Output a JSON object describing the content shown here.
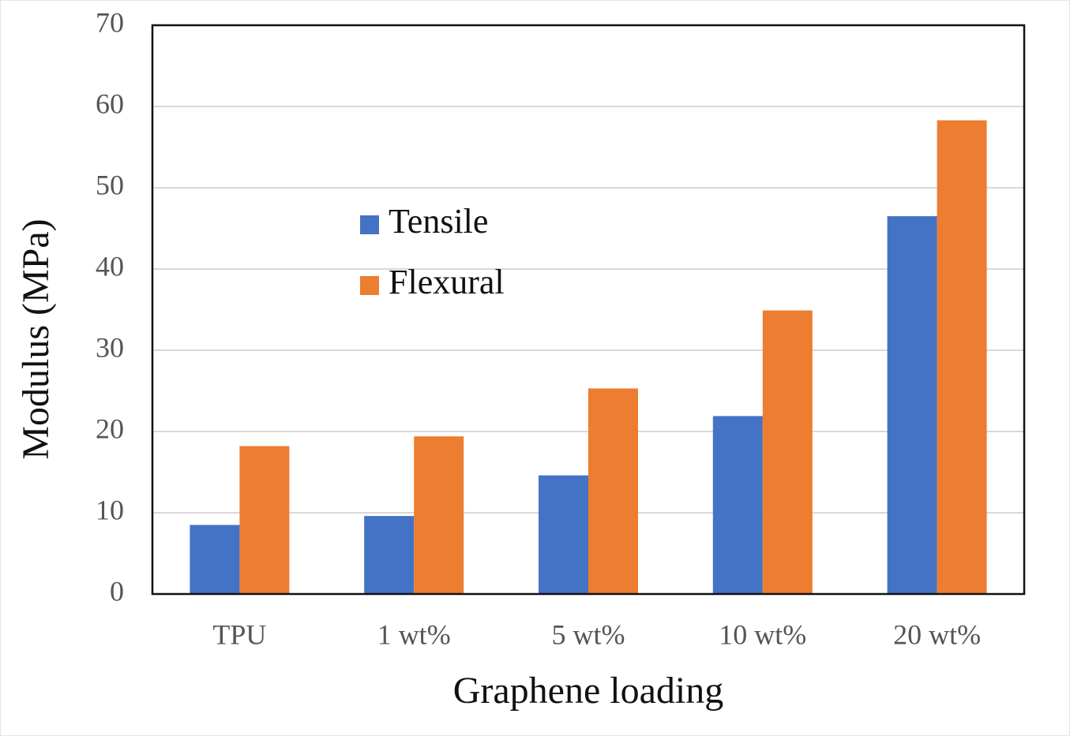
{
  "chart_data": {
    "type": "bar",
    "x_label": "Graphene loading",
    "y_label": "Modulus (MPa)",
    "categories": [
      "TPU",
      "1 wt%",
      "5 wt%",
      "10 wt%",
      "20 wt%"
    ],
    "series": [
      {
        "name": "Tensile",
        "color": "#4472c4",
        "values": [
          8.5,
          9.6,
          14.6,
          21.9,
          46.5
        ]
      },
      {
        "name": "Flexural",
        "color": "#ed7d31",
        "values": [
          18.2,
          19.4,
          25.3,
          34.9,
          58.3
        ]
      }
    ],
    "ylim": [
      0,
      70
    ],
    "yticks": [
      0,
      10,
      20,
      30,
      40,
      50,
      60,
      70
    ],
    "grid": true
  }
}
